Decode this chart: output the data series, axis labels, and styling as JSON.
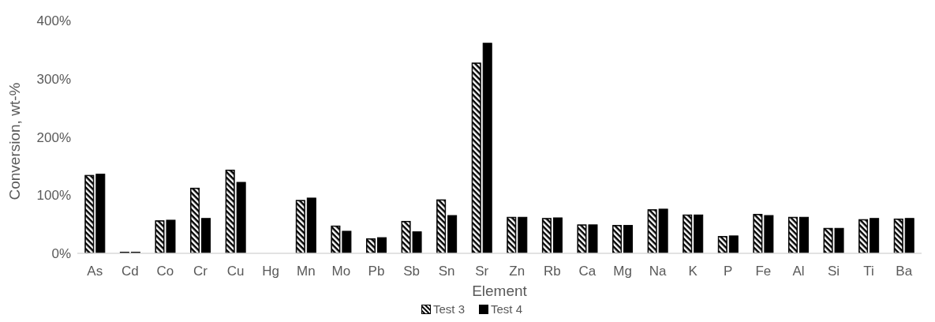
{
  "chart_data": {
    "type": "bar",
    "xlabel": "Element",
    "ylabel": "Conversion, wt-%",
    "categories": [
      "As",
      "Cd",
      "Co",
      "Cr",
      "Cu",
      "Hg",
      "Mn",
      "Mo",
      "Pb",
      "Sb",
      "Sn",
      "Sr",
      "Zn",
      "Rb",
      "Ca",
      "Mg",
      "Na",
      "K",
      "P",
      "Fe",
      "Al",
      "Si",
      "Ti",
      "Ba"
    ],
    "series": [
      {
        "name": "Test 3",
        "color": "#000000",
        "values": [
          134,
          2,
          56,
          112,
          143,
          0,
          91,
          47,
          25,
          55,
          92,
          327,
          62,
          60,
          49,
          48,
          75,
          66,
          29,
          67,
          62,
          43,
          58,
          59
        ]
      },
      {
        "name": "Test 4",
        "color": "#000000",
        "values": [
          136,
          2,
          57,
          60,
          122,
          0,
          95,
          38,
          27,
          37,
          65,
          361,
          62,
          61,
          49,
          48,
          76,
          66,
          30,
          65,
          62,
          43,
          60,
          60
        ]
      }
    ],
    "ylim": [
      0,
      400
    ],
    "yticks": [
      {
        "value": 0,
        "label": "0%"
      },
      {
        "value": 100,
        "label": "100%"
      },
      {
        "value": 200,
        "label": "200%"
      },
      {
        "value": 300,
        "label": "300%"
      },
      {
        "value": 400,
        "label": "400%"
      }
    ],
    "grid": false,
    "legend": "bottom"
  }
}
